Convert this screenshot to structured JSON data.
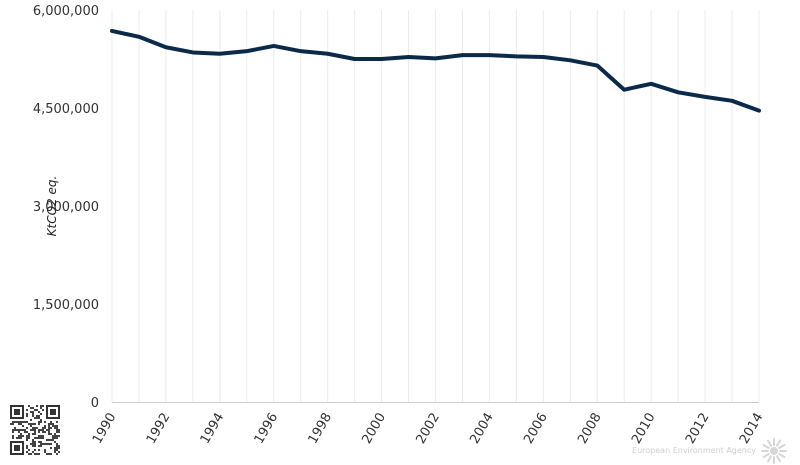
{
  "chart_data": {
    "type": "line",
    "title": "",
    "xlabel": "",
    "ylabel": "KtCO2 eq.",
    "x": [
      1990,
      1991,
      1992,
      1993,
      1994,
      1995,
      1996,
      1997,
      1998,
      1999,
      2000,
      2001,
      2002,
      2003,
      2004,
      2005,
      2006,
      2007,
      2008,
      2009,
      2010,
      2011,
      2012,
      2013,
      2014
    ],
    "series": [
      {
        "values": [
          5680000,
          5590000,
          5430000,
          5350000,
          5330000,
          5370000,
          5450000,
          5370000,
          5330000,
          5250000,
          5250000,
          5280000,
          5260000,
          5310000,
          5310000,
          5290000,
          5280000,
          5230000,
          5150000,
          4780000,
          4870000,
          4740000,
          4670000,
          4610000,
          4460000
        ],
        "color": "#0b2a4a"
      }
    ],
    "xlim": [
      1990,
      2014
    ],
    "ylim": [
      0,
      6000000
    ],
    "yticks": [
      0,
      1500000,
      3000000,
      4500000,
      6000000
    ],
    "ytick_labels": [
      "0",
      "1,500,000",
      "3,000,000",
      "4,500,000",
      "6,000,000"
    ],
    "xticks": [
      1990,
      1992,
      1994,
      1996,
      1998,
      2000,
      2002,
      2004,
      2006,
      2008,
      2010,
      2012,
      2014
    ],
    "xtick_labels": [
      "1990",
      "1992",
      "1994",
      "1996",
      "1998",
      "2000",
      "2002",
      "2004",
      "2006",
      "2008",
      "2010",
      "2012",
      "2014"
    ],
    "grid": true,
    "legend": "none"
  },
  "credit": "European Environment Agency",
  "icons": {
    "qr": "qr-code-icon",
    "logo": "eea-sun-logo-icon"
  }
}
